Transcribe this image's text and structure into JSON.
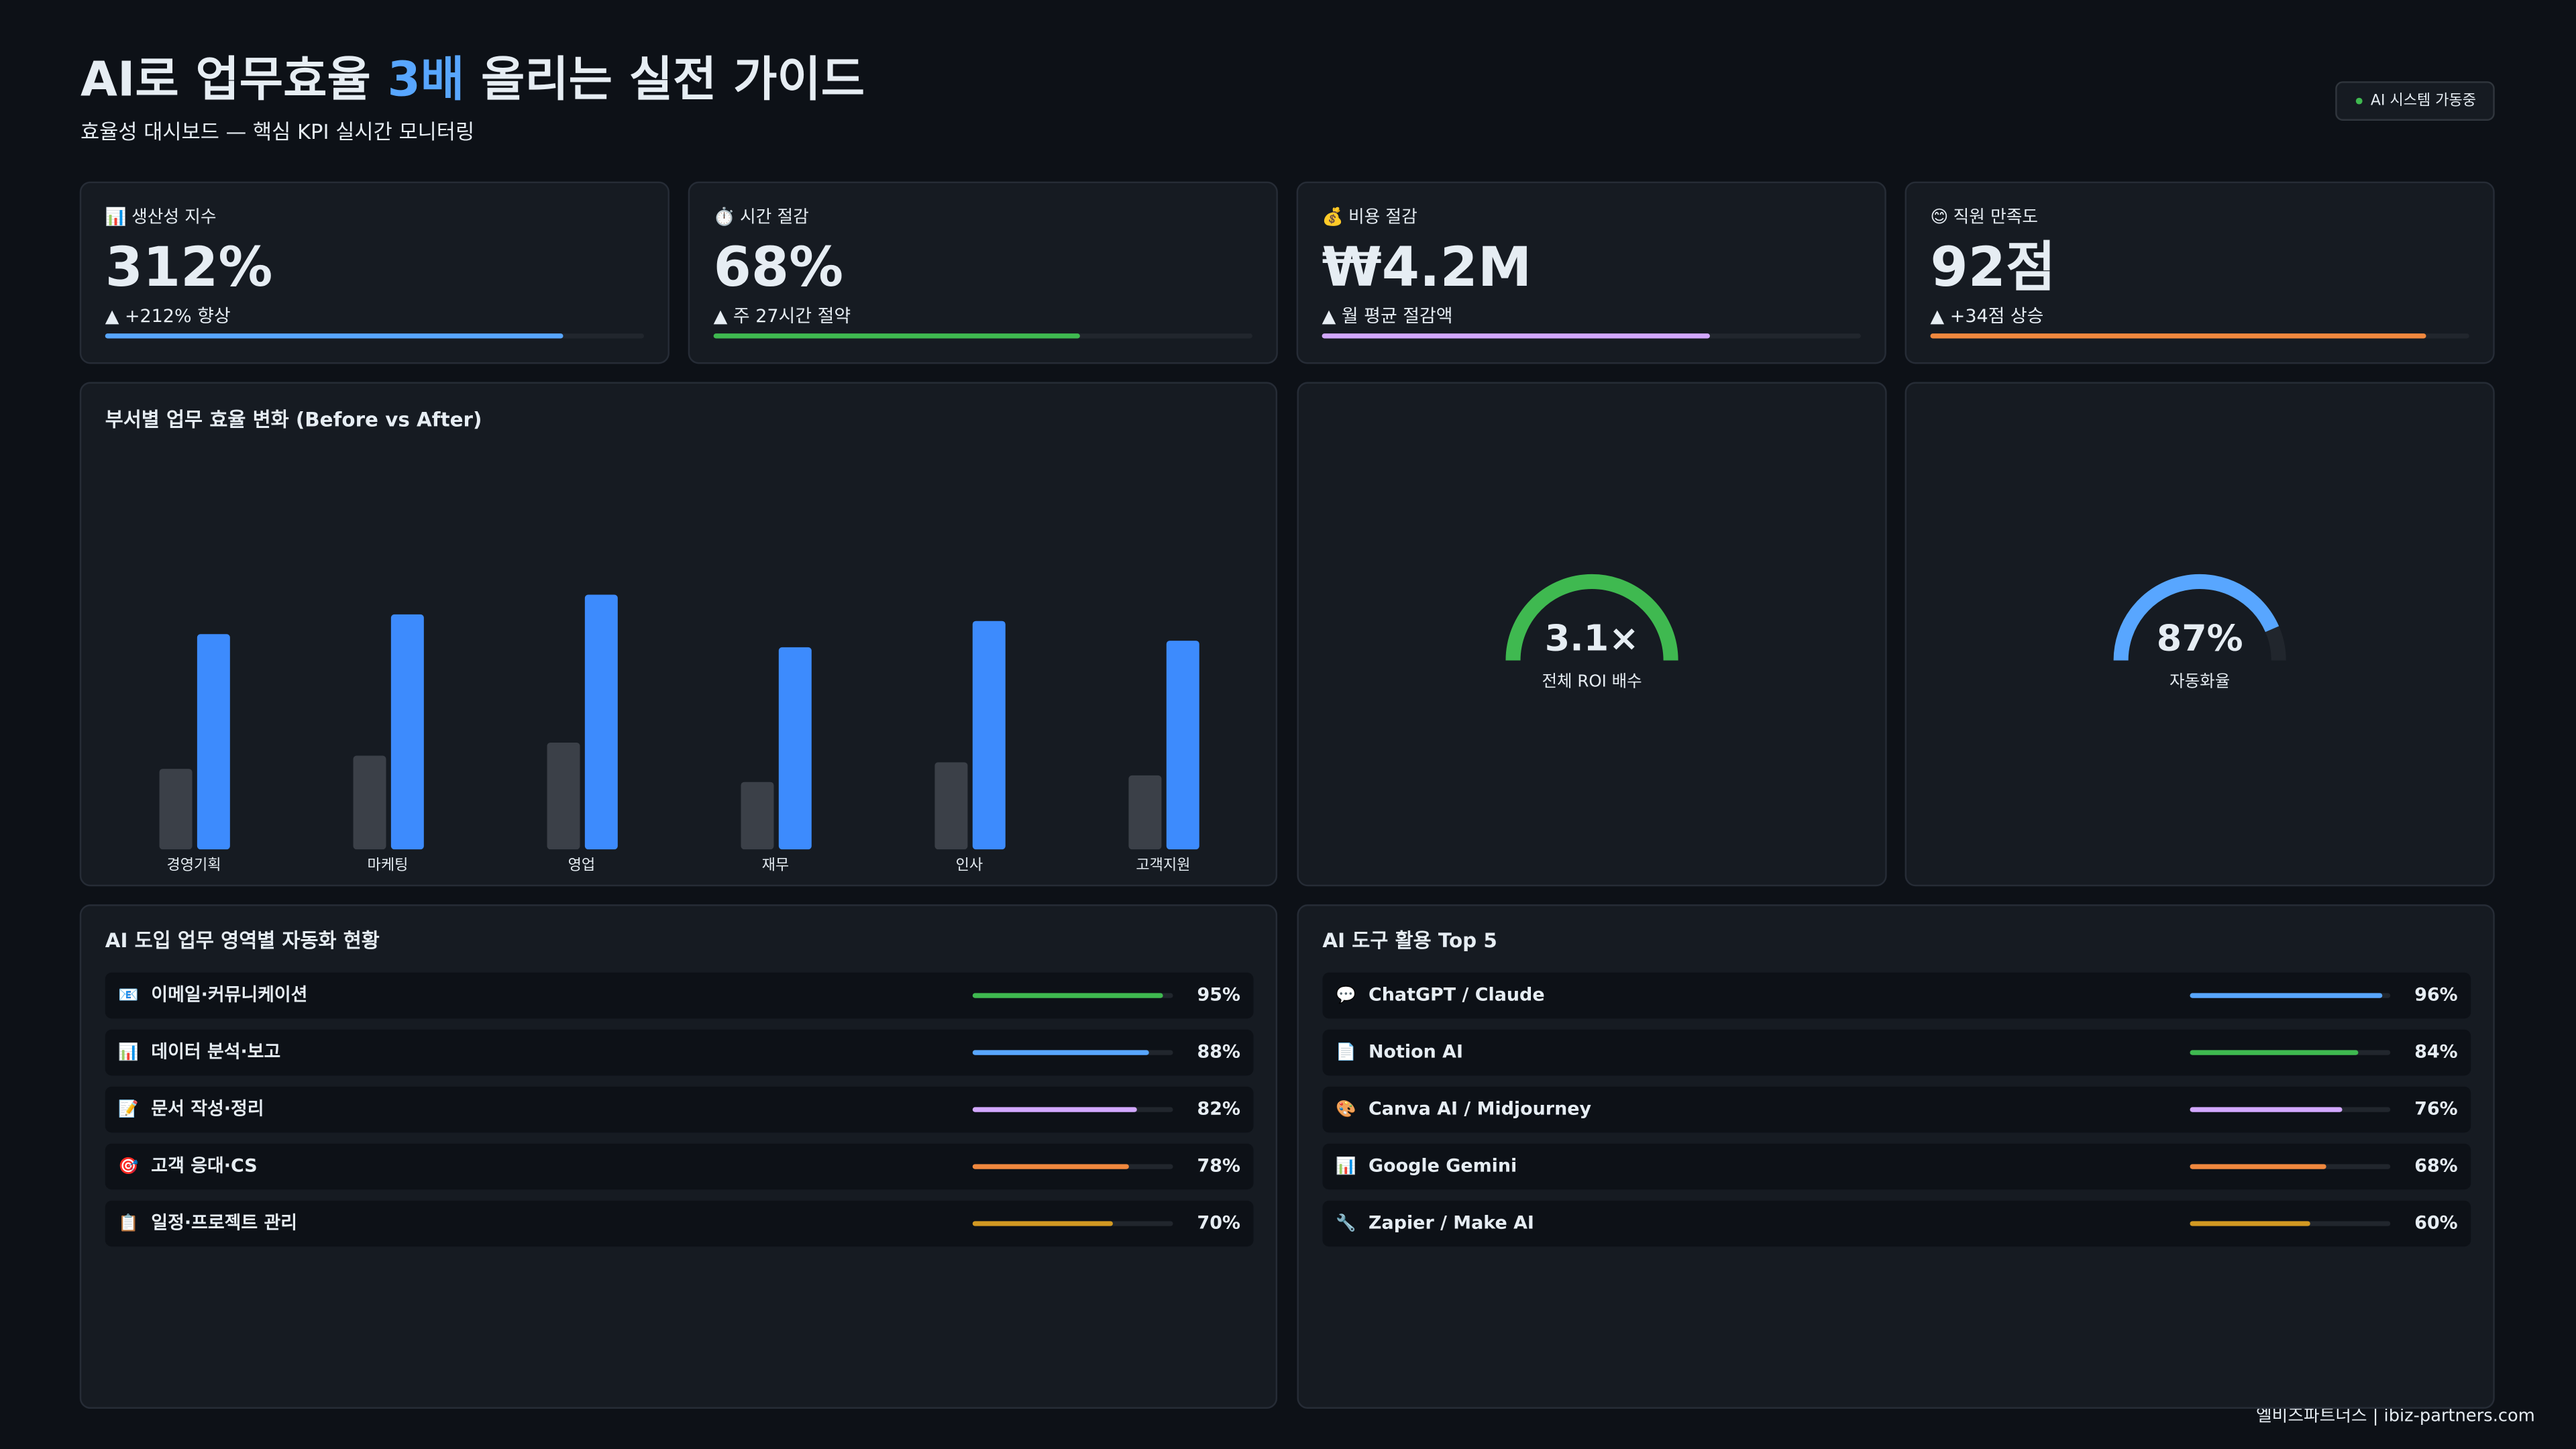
{
  "header": {
    "title_parts": [
      {
        "text": "AI로 업무효율 "
      },
      {
        "text": "3배",
        "color": "#58a6ff"
      },
      {
        "text": " 올리는 실전 가이드"
      }
    ],
    "subtitle": "효율성 대시보드 — 핵심 KPI 실시간 모니터링",
    "badge": "AI 시스템 가동중"
  },
  "kpis": [
    {
      "icon": "📊",
      "label": "생산성 지수",
      "value": "312%",
      "delta": "▲ +212% 향상",
      "progress": 85,
      "color": "#58a6ff"
    },
    {
      "icon": "⏱️",
      "label": "시간 절감",
      "value": "68%",
      "delta": "▲ 주 27시간 절약",
      "progress": 68,
      "color": "#3fb950"
    },
    {
      "icon": "💰",
      "label": "비용 절감",
      "value": "₩4.2M",
      "delta": "▲ 월 평균 절감액",
      "progress": 72,
      "color": "#d2a8ff"
    },
    {
      "icon": "😊",
      "label": "직원 만족도",
      "value": "92점",
      "delta": "▲ +34점 상승",
      "progress": 92,
      "color": "#f0883e"
    }
  ],
  "chart_data": {
    "type": "bar",
    "title": "부서별 업무 효율 변화 (Before vs After)",
    "categories": [
      "경영기획",
      "마케팅",
      "영업",
      "재무",
      "인사",
      "고객지원"
    ],
    "series": [
      {
        "color": "#3b4048",
        "values": [
          49,
          57,
          65,
          41,
          53,
          45
        ]
      },
      {
        "color": "#3d8bfd",
        "values": [
          131,
          143,
          155,
          123,
          139,
          127
        ]
      }
    ]
  },
  "gauges": [
    {
      "value_label": "3.1×",
      "label": "전체 ROI 배수",
      "color": "#3fb950"
    },
    {
      "value": 87,
      "value_label": "87%",
      "label": "자동화율",
      "color": "#58a6ff"
    }
  ],
  "lists": [
    {
      "title": "AI 도입 업무 영역별 자동화 현황",
      "items": [
        {
          "icon": "📧",
          "label": "이메일·커뮤니케이션",
          "value": 95,
          "value_label": "95%",
          "color": "#3fb950"
        },
        {
          "icon": "📊",
          "label": "데이터 분석·보고",
          "value": 88,
          "value_label": "88%",
          "color": "#58a6ff"
        },
        {
          "icon": "📝",
          "label": "문서 작성·정리",
          "value": 82,
          "value_label": "82%",
          "color": "#d2a8ff"
        },
        {
          "icon": "🎯",
          "label": "고객 응대·CS",
          "value": 78,
          "value_label": "78%",
          "color": "#f0883e"
        },
        {
          "icon": "📋",
          "label": "일정·프로젝트 관리",
          "value": 70,
          "value_label": "70%",
          "color": "#d29922"
        }
      ]
    },
    {
      "title": "AI 도구 활용 Top 5",
      "items": [
        {
          "icon": "💬",
          "label": "ChatGPT / Claude",
          "value": 96,
          "value_label": "96%",
          "color": "#58a6ff"
        },
        {
          "icon": "📄",
          "label": "Notion AI",
          "value": 84,
          "value_label": "84%",
          "color": "#3fb950"
        },
        {
          "icon": "🎨",
          "label": "Canva AI / Midjourney",
          "value": 76,
          "value_label": "76%",
          "color": "#d2a8ff"
        },
        {
          "icon": "📊",
          "label": "Google Gemini",
          "value": 68,
          "value_label": "68%",
          "color": "#f0883e"
        },
        {
          "icon": "🔧",
          "label": "Zapier / Make AI",
          "value": 60,
          "value_label": "60%",
          "color": "#d29922"
        }
      ]
    }
  ],
  "footer": "엘비즈파트너스 | ibiz-partners.com"
}
